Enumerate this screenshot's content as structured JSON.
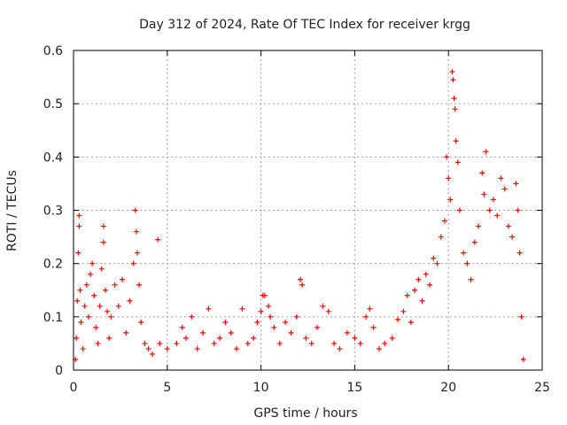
{
  "chart_data": {
    "type": "scatter",
    "title": "Day 312 of 2024, Rate Of TEC Index for receiver krgg",
    "xlabel": "GPS time / hours",
    "ylabel": "ROTI / TECUs",
    "xlim": [
      0,
      25
    ],
    "ylim": [
      0,
      0.6
    ],
    "xticks": [
      0,
      5,
      10,
      15,
      20,
      25
    ],
    "yticks": [
      0,
      0.1,
      0.2,
      0.3,
      0.4,
      0.5,
      0.6
    ],
    "xtick_labels": [
      "0",
      "5",
      "10",
      "15",
      "20",
      "25"
    ],
    "ytick_labels": [
      "0",
      "0.1",
      "0.2",
      "0.3",
      "0.4",
      "0.5",
      "0.6"
    ],
    "grid": true,
    "marker": "plus",
    "color": "#ff0000",
    "series": [
      {
        "name": "ROTI",
        "points": [
          [
            0.1,
            0.02
          ],
          [
            0.15,
            0.06
          ],
          [
            0.2,
            0.13
          ],
          [
            0.25,
            0.22
          ],
          [
            0.3,
            0.29
          ],
          [
            0.3,
            0.27
          ],
          [
            0.35,
            0.15
          ],
          [
            0.4,
            0.09
          ],
          [
            0.5,
            0.04
          ],
          [
            0.6,
            0.12
          ],
          [
            0.7,
            0.16
          ],
          [
            0.8,
            0.1
          ],
          [
            0.9,
            0.18
          ],
          [
            1.0,
            0.2
          ],
          [
            1.1,
            0.14
          ],
          [
            1.2,
            0.08
          ],
          [
            1.3,
            0.05
          ],
          [
            1.4,
            0.12
          ],
          [
            1.5,
            0.19
          ],
          [
            1.6,
            0.27
          ],
          [
            1.6,
            0.24
          ],
          [
            1.7,
            0.15
          ],
          [
            1.8,
            0.11
          ],
          [
            1.9,
            0.06
          ],
          [
            2.0,
            0.1
          ],
          [
            2.2,
            0.16
          ],
          [
            2.4,
            0.12
          ],
          [
            2.6,
            0.17
          ],
          [
            2.8,
            0.07
          ],
          [
            3.0,
            0.13
          ],
          [
            3.2,
            0.2
          ],
          [
            3.3,
            0.3
          ],
          [
            3.35,
            0.26
          ],
          [
            3.4,
            0.22
          ],
          [
            3.5,
            0.16
          ],
          [
            3.6,
            0.09
          ],
          [
            3.8,
            0.05
          ],
          [
            4.0,
            0.04
          ],
          [
            4.2,
            0.03
          ],
          [
            4.5,
            0.245
          ],
          [
            4.6,
            0.05
          ],
          [
            5.0,
            0.04
          ],
          [
            5.5,
            0.05
          ],
          [
            5.8,
            0.08
          ],
          [
            6.0,
            0.06
          ],
          [
            6.3,
            0.1
          ],
          [
            6.6,
            0.04
          ],
          [
            6.9,
            0.07
          ],
          [
            7.2,
            0.115
          ],
          [
            7.5,
            0.05
          ],
          [
            7.8,
            0.06
          ],
          [
            8.1,
            0.09
          ],
          [
            8.4,
            0.07
          ],
          [
            8.7,
            0.04
          ],
          [
            9.0,
            0.115
          ],
          [
            9.3,
            0.05
          ],
          [
            9.6,
            0.06
          ],
          [
            9.8,
            0.09
          ],
          [
            10.0,
            0.11
          ],
          [
            10.1,
            0.14
          ],
          [
            10.2,
            0.14
          ],
          [
            10.4,
            0.12
          ],
          [
            10.5,
            0.1
          ],
          [
            10.7,
            0.08
          ],
          [
            11.0,
            0.05
          ],
          [
            11.3,
            0.09
          ],
          [
            11.6,
            0.07
          ],
          [
            11.9,
            0.1
          ],
          [
            12.1,
            0.17
          ],
          [
            12.2,
            0.16
          ],
          [
            12.4,
            0.06
          ],
          [
            12.7,
            0.05
          ],
          [
            13.0,
            0.08
          ],
          [
            13.3,
            0.12
          ],
          [
            13.6,
            0.11
          ],
          [
            13.9,
            0.05
          ],
          [
            14.2,
            0.04
          ],
          [
            14.6,
            0.07
          ],
          [
            15.0,
            0.06
          ],
          [
            15.3,
            0.05
          ],
          [
            15.6,
            0.1
          ],
          [
            15.8,
            0.115
          ],
          [
            16.0,
            0.08
          ],
          [
            16.3,
            0.04
          ],
          [
            16.6,
            0.05
          ],
          [
            17.0,
            0.06
          ],
          [
            17.3,
            0.095
          ],
          [
            17.6,
            0.11
          ],
          [
            17.8,
            0.14
          ],
          [
            18.0,
            0.09
          ],
          [
            18.2,
            0.15
          ],
          [
            18.4,
            0.17
          ],
          [
            18.6,
            0.13
          ],
          [
            18.8,
            0.18
          ],
          [
            19.0,
            0.16
          ],
          [
            19.2,
            0.21
          ],
          [
            19.4,
            0.2
          ],
          [
            19.6,
            0.25
          ],
          [
            19.8,
            0.28
          ],
          [
            19.9,
            0.4
          ],
          [
            20.0,
            0.36
          ],
          [
            20.1,
            0.32
          ],
          [
            20.2,
            0.56
          ],
          [
            20.25,
            0.545
          ],
          [
            20.3,
            0.51
          ],
          [
            20.35,
            0.49
          ],
          [
            20.4,
            0.43
          ],
          [
            20.5,
            0.39
          ],
          [
            20.6,
            0.3
          ],
          [
            20.8,
            0.22
          ],
          [
            21.0,
            0.2
          ],
          [
            21.2,
            0.17
          ],
          [
            21.4,
            0.24
          ],
          [
            21.6,
            0.27
          ],
          [
            21.8,
            0.37
          ],
          [
            21.9,
            0.33
          ],
          [
            22.0,
            0.41
          ],
          [
            22.2,
            0.3
          ],
          [
            22.4,
            0.32
          ],
          [
            22.6,
            0.29
          ],
          [
            22.8,
            0.36
          ],
          [
            23.0,
            0.34
          ],
          [
            23.2,
            0.27
          ],
          [
            23.4,
            0.25
          ],
          [
            23.6,
            0.35
          ],
          [
            23.7,
            0.3
          ],
          [
            23.8,
            0.22
          ],
          [
            23.9,
            0.1
          ],
          [
            24.0,
            0.02
          ]
        ]
      }
    ]
  }
}
